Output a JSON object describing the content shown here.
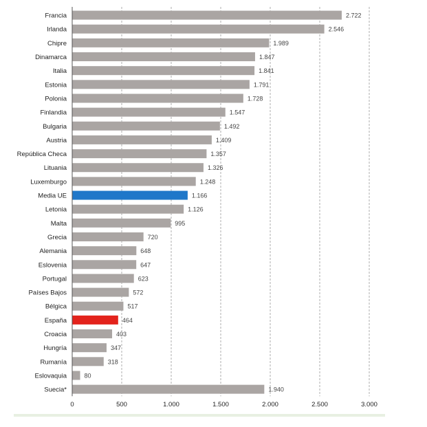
{
  "chart_data": {
    "type": "bar",
    "orientation": "horizontal",
    "categories": [
      "Francia",
      "Irlanda",
      "Chipre",
      "Dinamarca",
      "Italia",
      "Estonia",
      "Polonia",
      "Finlandia",
      "Bulgaria",
      "Austria",
      "República Checa",
      "Lituania",
      "Luxemburgo",
      "Media UE",
      "Letonia",
      "Malta",
      "Grecia",
      "Alemania",
      "Eslovenia",
      "Portugal",
      "Países Bajos",
      "Bélgica",
      "España",
      "Croacia",
      "Hungría",
      "Rumanía",
      "Eslovaquia",
      "Suecia*"
    ],
    "values": [
      2722,
      2546,
      1989,
      1847,
      1841,
      1791,
      1728,
      1547,
      1492,
      1409,
      1357,
      1326,
      1248,
      1166,
      1126,
      995,
      720,
      648,
      647,
      623,
      572,
      517,
      464,
      403,
      347,
      318,
      80,
      1940
    ],
    "value_labels": [
      "2.722",
      "2.546",
      "1.989",
      "1.847",
      "1.841",
      "1.791",
      "1.728",
      "1.547",
      "1.492",
      "1.409",
      "1.357",
      "1.326",
      "1.248",
      "1.166",
      "1.126",
      "995",
      "720",
      "648",
      "647",
      "623",
      "572",
      "517",
      "464",
      "403",
      "347",
      "318",
      "80",
      "1.940"
    ],
    "highlights": {
      "Media UE": "#1f77c9",
      "España": "#e3231c"
    },
    "bar_color": "#aaa5a3",
    "grid_color": "#9a9a9a",
    "xlim": [
      0,
      3000
    ],
    "xticks": [
      0,
      500,
      1000,
      1500,
      2000,
      2500,
      3000
    ],
    "xtick_labels": [
      "0",
      "500",
      "1.000",
      "1.500",
      "2.000",
      "2.500",
      "3.000"
    ],
    "title": "",
    "xlabel": "",
    "ylabel": "",
    "grid": true,
    "grid_style": "dashed"
  }
}
